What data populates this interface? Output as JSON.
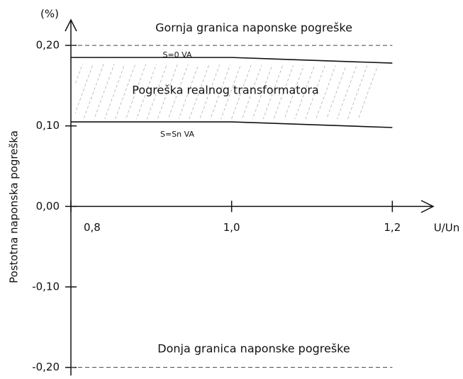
{
  "chart_data": {
    "type": "line",
    "unit_label": "(%)",
    "y_label": "Postotna naponska pogreška",
    "x_label": "U/Un",
    "annotation": "Pogreška realnog transformatora",
    "x": [
      0.8,
      1.0,
      1.2
    ],
    "series": [
      {
        "name": "S=0 VA",
        "color": "#111111",
        "values": [
          0.185,
          0.185,
          0.178
        ]
      },
      {
        "name": "S=Sn VA",
        "color": "#111111",
        "values": [
          0.105,
          0.105,
          0.098
        ]
      },
      {
        "name": "Gornja granica naponske pogreške",
        "color": "#444444",
        "dashed": true,
        "values": [
          0.2,
          0.2,
          0.2
        ]
      },
      {
        "name": "Donja granica naponske pogreške",
        "color": "#444444",
        "dashed": true,
        "values": [
          -0.2,
          -0.2,
          -0.2
        ]
      }
    ],
    "xlim": [
      0.8,
      1.25
    ],
    "ylim": [
      -0.21,
      0.23
    ],
    "xticks": [
      {
        "value": 0.8,
        "label": "0,8"
      },
      {
        "value": 1.0,
        "label": "1,0"
      },
      {
        "value": 1.2,
        "label": "1,2"
      }
    ],
    "yticks": [
      {
        "value": 0.2,
        "label": "0,20"
      },
      {
        "value": 0.1,
        "label": "0,10"
      },
      {
        "value": 0,
        "label": "0,00"
      },
      {
        "value": -0.1,
        "label": "-0,10"
      },
      {
        "value": -0.2,
        "label": "-0,20"
      }
    ]
  }
}
